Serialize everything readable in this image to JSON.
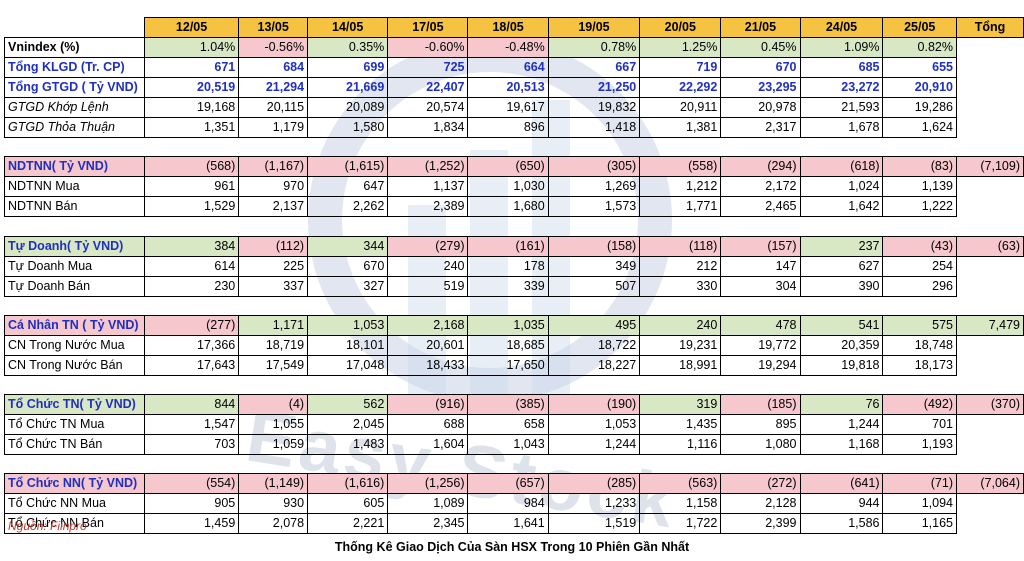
{
  "dates": [
    "12/05",
    "13/05",
    "14/05",
    "17/05",
    "18/05",
    "19/05",
    "20/05",
    "21/05",
    "24/05",
    "25/05"
  ],
  "total_header": "Tổng",
  "vnindex": {
    "label": "Vnindex (%)",
    "values": [
      "1.04%",
      "-0.56%",
      "0.35%",
      "-0.60%",
      "-0.48%",
      "0.78%",
      "1.25%",
      "0.45%",
      "1.09%",
      "0.82%"
    ],
    "signs": [
      1,
      -1,
      1,
      -1,
      -1,
      1,
      1,
      1,
      1,
      1
    ]
  },
  "klgd": {
    "label": "Tổng KLGD (Tr. CP)",
    "values": [
      "671",
      "684",
      "699",
      "725",
      "664",
      "667",
      "719",
      "670",
      "685",
      "655"
    ]
  },
  "gtgd": {
    "label": "Tổng GTGD ( Tỷ VND)",
    "values": [
      "20,519",
      "21,294",
      "21,669",
      "22,407",
      "20,513",
      "21,250",
      "22,292",
      "23,295",
      "23,272",
      "20,910"
    ]
  },
  "gtgd_khop": {
    "label": "GTGD Khớp Lệnh",
    "values": [
      "19,168",
      "20,115",
      "20,089",
      "20,574",
      "19,617",
      "19,832",
      "20,911",
      "20,978",
      "21,593",
      "19,286"
    ]
  },
  "gtgd_thoa": {
    "label": "GTGD Thỏa Thuận",
    "values": [
      "1,351",
      "1,179",
      "1,580",
      "1,834",
      "896",
      "1,418",
      "1,381",
      "2,317",
      "1,678",
      "1,624"
    ]
  },
  "sections": [
    {
      "label": "NDTNN( Tỷ VND)",
      "values": [
        "(568)",
        "(1,167)",
        "(1,615)",
        "(1,252)",
        "(650)",
        "(305)",
        "(558)",
        "(294)",
        "(618)",
        "(83)"
      ],
      "signs": [
        -1,
        -1,
        -1,
        -1,
        -1,
        -1,
        -1,
        -1,
        -1,
        -1
      ],
      "total": "(7,109)",
      "total_sign": -1,
      "rows": [
        {
          "label": "NDTNN Mua",
          "values": [
            "961",
            "970",
            "647",
            "1,137",
            "1,030",
            "1,269",
            "1,212",
            "2,172",
            "1,024",
            "1,139"
          ]
        },
        {
          "label": "NDTNN Bán",
          "values": [
            "1,529",
            "2,137",
            "2,262",
            "2,389",
            "1,680",
            "1,573",
            "1,771",
            "2,465",
            "1,642",
            "1,222"
          ]
        }
      ]
    },
    {
      "label": "Tự Doanh( Tỷ VND)",
      "values": [
        "384",
        "(112)",
        "344",
        "(279)",
        "(161)",
        "(158)",
        "(118)",
        "(157)",
        "237",
        "(43)"
      ],
      "signs": [
        1,
        -1,
        1,
        -1,
        -1,
        -1,
        -1,
        -1,
        1,
        -1
      ],
      "total": "(63)",
      "total_sign": -1,
      "rows": [
        {
          "label": "Tự Doanh Mua",
          "values": [
            "614",
            "225",
            "670",
            "240",
            "178",
            "349",
            "212",
            "147",
            "627",
            "254"
          ]
        },
        {
          "label": "Tự Doanh Bán",
          "values": [
            "230",
            "337",
            "327",
            "519",
            "339",
            "507",
            "330",
            "304",
            "390",
            "296"
          ]
        }
      ]
    },
    {
      "label": "Cá Nhân TN ( Tỷ VND)",
      "values": [
        "(277)",
        "1,171",
        "1,053",
        "2,168",
        "1,035",
        "495",
        "240",
        "478",
        "541",
        "575"
      ],
      "signs": [
        -1,
        1,
        1,
        1,
        1,
        1,
        1,
        1,
        1,
        1
      ],
      "total": "7,479",
      "total_sign": 1,
      "rows": [
        {
          "label": "CN Trong Nước Mua",
          "values": [
            "17,366",
            "18,719",
            "18,101",
            "20,601",
            "18,685",
            "18,722",
            "19,231",
            "19,772",
            "20,359",
            "18,748"
          ]
        },
        {
          "label": "CN Trong Nước Bán",
          "values": [
            "17,643",
            "17,549",
            "17,048",
            "18,433",
            "17,650",
            "18,227",
            "18,991",
            "19,294",
            "19,818",
            "18,173"
          ]
        }
      ]
    },
    {
      "label": "Tổ Chức TN( Tỷ VND)",
      "values": [
        "844",
        "(4)",
        "562",
        "(916)",
        "(385)",
        "(190)",
        "319",
        "(185)",
        "76",
        "(492)"
      ],
      "signs": [
        1,
        -1,
        1,
        -1,
        -1,
        -1,
        1,
        -1,
        1,
        -1
      ],
      "total": "(370)",
      "total_sign": -1,
      "rows": [
        {
          "label": "Tổ Chức TN Mua",
          "values": [
            "1,547",
            "1,055",
            "2,045",
            "688",
            "658",
            "1,053",
            "1,435",
            "895",
            "1,244",
            "701"
          ]
        },
        {
          "label": "Tổ Chức TN Bán",
          "values": [
            "703",
            "1,059",
            "1,483",
            "1,604",
            "1,043",
            "1,244",
            "1,116",
            "1,080",
            "1,168",
            "1,193"
          ]
        }
      ]
    },
    {
      "label": "Tổ Chức NN( Tỷ VND)",
      "values": [
        "(554)",
        "(1,149)",
        "(1,616)",
        "(1,256)",
        "(657)",
        "(285)",
        "(563)",
        "(272)",
        "(641)",
        "(71)"
      ],
      "signs": [
        -1,
        -1,
        -1,
        -1,
        -1,
        -1,
        -1,
        -1,
        -1,
        -1
      ],
      "total": "(7,064)",
      "total_sign": -1,
      "rows": [
        {
          "label": "Tổ Chức NN Mua",
          "values": [
            "905",
            "930",
            "605",
            "1,089",
            "984",
            "1,233",
            "1,158",
            "2,128",
            "944",
            "1,094"
          ]
        },
        {
          "label": "Tổ Chức NN Bán",
          "values": [
            "1,459",
            "2,078",
            "2,221",
            "2,345",
            "1,641",
            "1,519",
            "1,722",
            "2,399",
            "1,586",
            "1,165"
          ]
        }
      ]
    }
  ],
  "source": "Nguồn: Fiinpro",
  "caption": "Thống Kê Giao Dịch Của Sàn HSX Trong 10 Phiên Gần Nhất",
  "watermark": "Easy Stock",
  "colors": {
    "header": "#f5c242",
    "positive": "#d8e8c4",
    "negative": "#f6c7cd",
    "blue_text": "#1f2fbf",
    "source_text": "#c0392b"
  }
}
